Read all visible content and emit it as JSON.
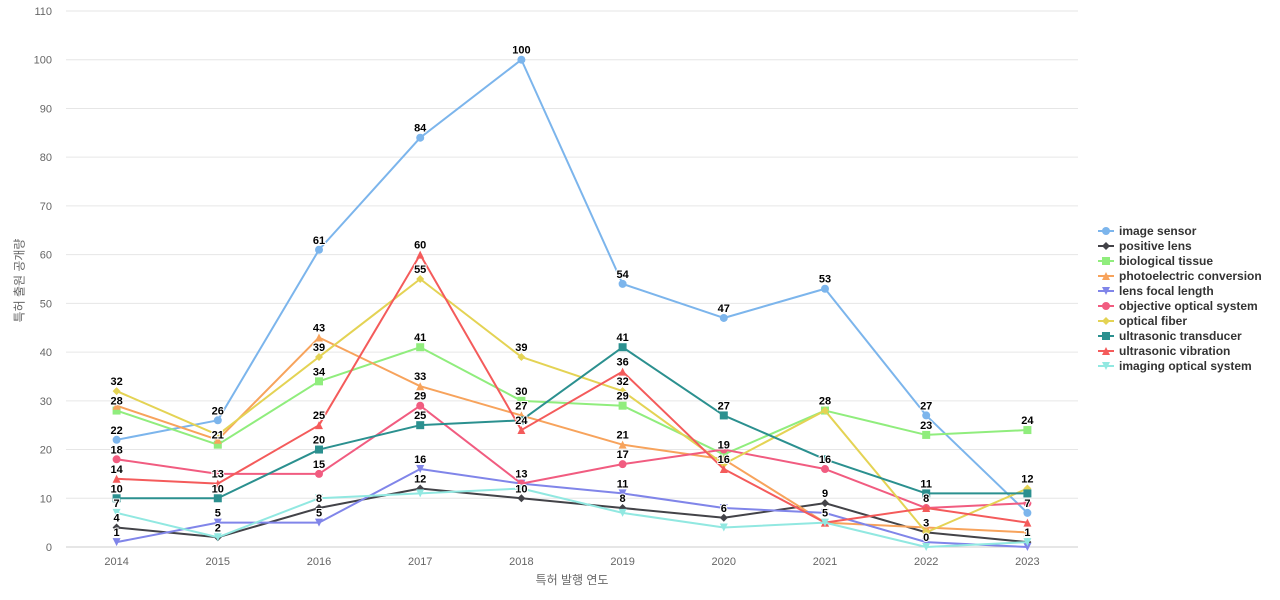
{
  "chart_data": {
    "type": "line",
    "title": "",
    "xlabel": "특허 발행 연도",
    "ylabel": "특허 출원 공개량",
    "ylim": [
      0,
      110
    ],
    "yticks": [
      0,
      10,
      20,
      30,
      40,
      50,
      60,
      70,
      80,
      90,
      100,
      110
    ],
    "grid": "horizontal",
    "legend_position": "right",
    "categories": [
      "2014",
      "2015",
      "2016",
      "2017",
      "2018",
      "2019",
      "2020",
      "2021",
      "2022",
      "2023"
    ],
    "series": [
      {
        "name": "image sensor",
        "color": "#7cb5ec",
        "marker": "circle",
        "values": [
          22,
          26,
          61,
          84,
          100,
          54,
          47,
          53,
          27,
          7
        ]
      },
      {
        "name": "positive lens",
        "color": "#434348",
        "marker": "diamond",
        "values": [
          4,
          2,
          8,
          12,
          10,
          8,
          6,
          9,
          3,
          1
        ]
      },
      {
        "name": "biological tissue",
        "color": "#90ed7d",
        "marker": "square",
        "values": [
          28,
          21,
          34,
          41,
          30,
          29,
          19,
          28,
          23,
          24
        ]
      },
      {
        "name": "photoelectric conversion",
        "color": "#f7a35c",
        "marker": "triangle",
        "values": [
          29,
          22,
          43,
          33,
          27,
          21,
          18,
          5,
          4,
          3
        ]
      },
      {
        "name": "lens focal length",
        "color": "#8085e9",
        "marker": "triangle-down",
        "values": [
          1,
          5,
          5,
          16,
          13,
          11,
          8,
          7,
          1,
          0
        ]
      },
      {
        "name": "objective optical system",
        "color": "#f15c80",
        "marker": "circle",
        "values": [
          18,
          15,
          15,
          29,
          13,
          17,
          20,
          16,
          8,
          9
        ]
      },
      {
        "name": "optical fiber",
        "color": "#e4d354",
        "marker": "diamond",
        "values": [
          32,
          23,
          39,
          55,
          39,
          32,
          17,
          28,
          3,
          12
        ]
      },
      {
        "name": "ultrasonic transducer",
        "color": "#2b908f",
        "marker": "square",
        "values": [
          10,
          10,
          20,
          25,
          26,
          41,
          27,
          18,
          11,
          11
        ]
      },
      {
        "name": "ultrasonic vibration",
        "color": "#f45b5b",
        "marker": "triangle",
        "values": [
          14,
          13,
          25,
          60,
          24,
          36,
          16,
          5,
          8,
          5
        ]
      },
      {
        "name": "imaging optical system",
        "color": "#91e8e1",
        "marker": "triangle-down",
        "values": [
          7,
          2,
          10,
          11,
          12,
          7,
          4,
          5,
          0,
          1
        ]
      }
    ],
    "data_labels": [
      {
        "category": "2014",
        "values": [
          32,
          28,
          22,
          18,
          14,
          10,
          7,
          4,
          1
        ]
      },
      {
        "category": "2015",
        "values": [
          26,
          21,
          13,
          10,
          5,
          2
        ]
      },
      {
        "category": "2016",
        "values": [
          61,
          43,
          39,
          34,
          25,
          20,
          15,
          8,
          5
        ]
      },
      {
        "category": "2017",
        "values": [
          84,
          60,
          55,
          41,
          33,
          29,
          25,
          16,
          12
        ]
      },
      {
        "category": "2018",
        "values": [
          100,
          39,
          30,
          27,
          24,
          13,
          10
        ]
      },
      {
        "category": "2019",
        "values": [
          54,
          41,
          36,
          32,
          29,
          21,
          17,
          11,
          8
        ]
      },
      {
        "category": "2020",
        "values": [
          47,
          27,
          19,
          16,
          6
        ]
      },
      {
        "category": "2021",
        "values": [
          53,
          28,
          16,
          9,
          5
        ]
      },
      {
        "category": "2022",
        "values": [
          27,
          23,
          11,
          8,
          3,
          0
        ]
      },
      {
        "category": "2023",
        "values": [
          24,
          12,
          7,
          1
        ]
      }
    ]
  }
}
